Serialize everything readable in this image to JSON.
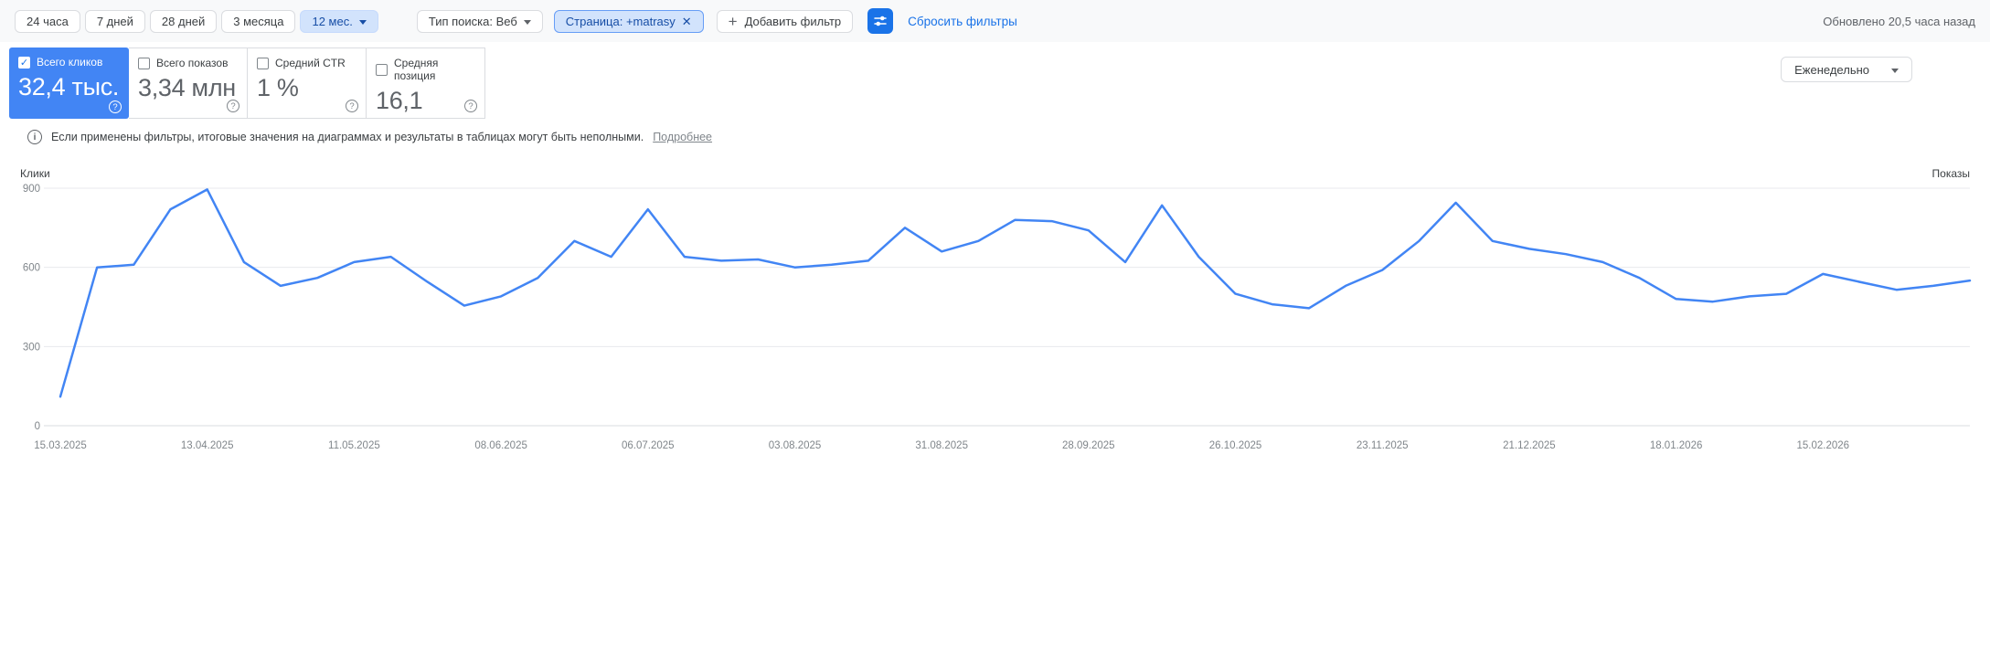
{
  "toolbar": {
    "time_ranges": [
      {
        "label": "24 часа"
      },
      {
        "label": "7 дней"
      },
      {
        "label": "28 дней"
      },
      {
        "label": "3 месяца"
      },
      {
        "label": "12 мес."
      }
    ],
    "active_range": "12 мес.",
    "search_type_filter": {
      "label": "Тип поиска: Веб"
    },
    "page_filter": {
      "label": "Страница: +matrasy",
      "close": "✕"
    },
    "add_filter_label": "Добавить фильтр",
    "reset_filters_label": "Сбросить фильтры",
    "updated_text": "Обновлено 20,5 часа назад"
  },
  "metrics": {
    "cards": [
      {
        "label": "Всего кликов",
        "value": "32,4 тыс.",
        "checked": true,
        "color": "#4285f4"
      },
      {
        "label": "Всего показов",
        "value": "3,34 млн",
        "checked": false
      },
      {
        "label": "Средний CTR",
        "value": "1 %",
        "checked": false
      },
      {
        "label": "Средняя позиция",
        "value": "16,1",
        "checked": false
      }
    ],
    "granularity_label": "Еженедельно"
  },
  "notice": {
    "text": "Если применены фильтры, итоговые значения на диаграммах и результаты в таблицах могут быть неполными.",
    "link_label": "Подробнее"
  },
  "chart_data": {
    "type": "line",
    "title": "",
    "left_axis_label": "Клики",
    "right_axis_label": "Показы",
    "ylim": [
      0,
      900
    ],
    "yticks": [
      0,
      300,
      600,
      900
    ],
    "grid": true,
    "legend": "none",
    "points_per_label": 4,
    "x_labels": [
      "15.03.2025",
      "13.04.2025",
      "11.05.2025",
      "08.06.2025",
      "06.07.2025",
      "03.08.2025",
      "31.08.2025",
      "28.09.2025",
      "26.10.2025",
      "23.11.2025",
      "21.12.2025",
      "18.01.2026",
      "15.02.2026"
    ],
    "series": [
      {
        "name": "Клики",
        "color": "#4285f4",
        "values": [
          110,
          600,
          610,
          820,
          895,
          620,
          530,
          560,
          620,
          640,
          545,
          455,
          490,
          560,
          700,
          640,
          820,
          640,
          625,
          630,
          600,
          610,
          625,
          750,
          660,
          700,
          780,
          775,
          740,
          620,
          835,
          640,
          500,
          460,
          445,
          530,
          590,
          700,
          845,
          700,
          670,
          650,
          620,
          560,
          480,
          470,
          490,
          500,
          575,
          545,
          515,
          530,
          550
        ]
      }
    ]
  }
}
